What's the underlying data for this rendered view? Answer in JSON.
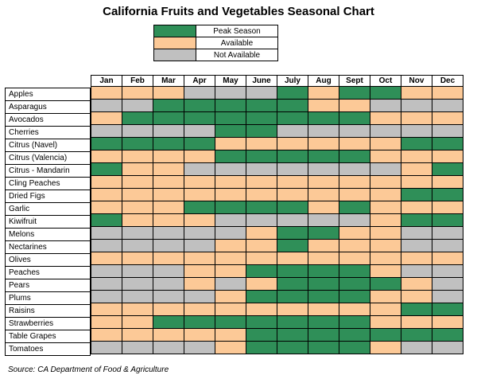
{
  "title": "California Fruits and Vegetables Seasonal Chart",
  "source": "Source: CA Department of Food & Agriculture",
  "colors": {
    "P": "#2f8f58",
    "A": "#fcc997",
    "N": "#c0c0c0"
  },
  "legend": [
    {
      "key": "P",
      "label": "Peak Season"
    },
    {
      "key": "A",
      "label": "Available"
    },
    {
      "key": "N",
      "label": "Not Available"
    }
  ],
  "chart_data": {
    "type": "heatmap",
    "months": [
      "Jan",
      "Feb",
      "Mar",
      "Apr",
      "May",
      "June",
      "July",
      "Aug",
      "Sept",
      "Oct",
      "Nov",
      "Dec"
    ],
    "encoding": {
      "P": "Peak Season",
      "A": "Available",
      "N": "Not Available"
    },
    "rows": [
      {
        "name": "Apples",
        "status": [
          "A",
          "A",
          "A",
          "N",
          "N",
          "N",
          "P",
          "A",
          "P",
          "P",
          "A",
          "A"
        ]
      },
      {
        "name": "Asparagus",
        "status": [
          "N",
          "N",
          "P",
          "P",
          "P",
          "P",
          "P",
          "A",
          "A",
          "N",
          "N",
          "N"
        ]
      },
      {
        "name": "Avocados",
        "status": [
          "A",
          "P",
          "P",
          "P",
          "P",
          "P",
          "P",
          "P",
          "P",
          "A",
          "A",
          "A"
        ]
      },
      {
        "name": "Cherries",
        "status": [
          "N",
          "N",
          "N",
          "N",
          "P",
          "P",
          "N",
          "N",
          "N",
          "N",
          "N",
          "N"
        ]
      },
      {
        "name": "Citrus (Navel)",
        "status": [
          "P",
          "P",
          "P",
          "P",
          "A",
          "A",
          "A",
          "A",
          "A",
          "A",
          "P",
          "P"
        ]
      },
      {
        "name": "Citrus (Valencia)",
        "status": [
          "A",
          "A",
          "A",
          "A",
          "P",
          "P",
          "P",
          "P",
          "P",
          "A",
          "A",
          "A"
        ]
      },
      {
        "name": "Citrus - Mandarin",
        "status": [
          "P",
          "A",
          "A",
          "N",
          "N",
          "N",
          "N",
          "N",
          "N",
          "N",
          "A",
          "P"
        ]
      },
      {
        "name": "Cling Peaches",
        "status": [
          "A",
          "A",
          "A",
          "A",
          "A",
          "A",
          "A",
          "A",
          "A",
          "A",
          "A",
          "A"
        ]
      },
      {
        "name": "Dried Figs",
        "status": [
          "A",
          "A",
          "A",
          "A",
          "A",
          "A",
          "A",
          "A",
          "A",
          "A",
          "P",
          "P"
        ]
      },
      {
        "name": "Garlic",
        "status": [
          "A",
          "A",
          "A",
          "P",
          "P",
          "P",
          "P",
          "A",
          "P",
          "A",
          "A",
          "A"
        ]
      },
      {
        "name": "Kiwifruit",
        "status": [
          "P",
          "A",
          "A",
          "A",
          "N",
          "N",
          "N",
          "N",
          "N",
          "A",
          "P",
          "P"
        ]
      },
      {
        "name": "Melons",
        "status": [
          "N",
          "N",
          "N",
          "N",
          "N",
          "A",
          "P",
          "P",
          "A",
          "A",
          "N",
          "N"
        ]
      },
      {
        "name": "Nectarines",
        "status": [
          "N",
          "N",
          "N",
          "N",
          "A",
          "A",
          "P",
          "A",
          "A",
          "A",
          "N",
          "N"
        ]
      },
      {
        "name": "Olives",
        "status": [
          "A",
          "A",
          "A",
          "A",
          "A",
          "A",
          "A",
          "A",
          "A",
          "A",
          "A",
          "A"
        ]
      },
      {
        "name": "Peaches",
        "status": [
          "N",
          "N",
          "N",
          "A",
          "A",
          "P",
          "P",
          "P",
          "P",
          "A",
          "N",
          "N"
        ]
      },
      {
        "name": "Pears",
        "status": [
          "N",
          "N",
          "N",
          "A",
          "N",
          "A",
          "P",
          "P",
          "P",
          "P",
          "A",
          "N"
        ]
      },
      {
        "name": "Plums",
        "status": [
          "N",
          "N",
          "N",
          "N",
          "A",
          "P",
          "P",
          "P",
          "P",
          "A",
          "A",
          "N"
        ]
      },
      {
        "name": "Raisins",
        "status": [
          "A",
          "A",
          "A",
          "A",
          "A",
          "A",
          "A",
          "A",
          "A",
          "A",
          "P",
          "P"
        ]
      },
      {
        "name": "Strawberries",
        "status": [
          "A",
          "A",
          "P",
          "P",
          "P",
          "P",
          "P",
          "P",
          "P",
          "A",
          "A",
          "A"
        ]
      },
      {
        "name": "Table Grapes",
        "status": [
          "A",
          "A",
          "A",
          "A",
          "A",
          "P",
          "P",
          "P",
          "P",
          "P",
          "P",
          "P"
        ]
      },
      {
        "name": "Tomatoes",
        "status": [
          "N",
          "N",
          "N",
          "N",
          "A",
          "P",
          "P",
          "P",
          "P",
          "A",
          "N",
          "N"
        ]
      }
    ]
  }
}
